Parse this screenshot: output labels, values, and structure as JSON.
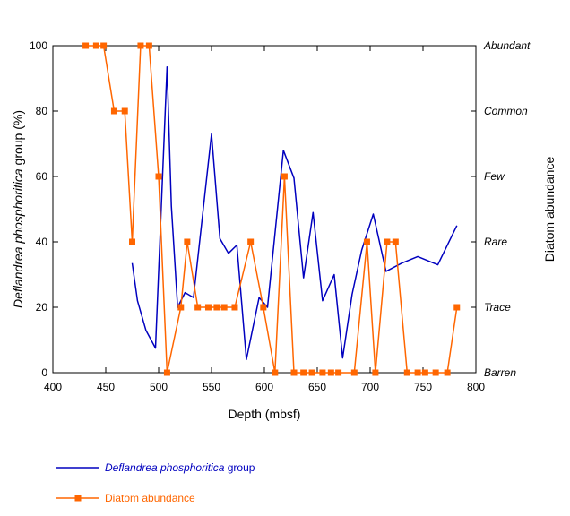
{
  "chart_data": {
    "type": "line",
    "xlabel": "Depth (mbsf)",
    "ylabel_italic": "Deflandrea phosphoritica",
    "ylabel_rest": " group (%)",
    "y2label": "Diatom abundance",
    "xlim": [
      400,
      800
    ],
    "ylim": [
      0,
      100
    ],
    "x_ticks": [
      400,
      450,
      500,
      550,
      600,
      650,
      700,
      750,
      800
    ],
    "y_ticks": [
      0,
      20,
      40,
      60,
      80,
      100
    ],
    "y2_categories": [
      "Barren",
      "Trace",
      "Rare",
      "Few",
      "Common",
      "Abundant"
    ],
    "grid": false,
    "legend_position": "bottom-left",
    "colors": {
      "deflandrea": "#0000bf",
      "diatom": "#ff6600"
    },
    "series": [
      {
        "name_italic": "Deflandrea phosphoritica",
        "name_rest": " group",
        "marker": "none",
        "x": [
          475,
          480,
          488,
          497,
          508,
          512,
          518,
          525,
          533,
          550,
          558,
          566,
          574,
          583,
          595,
          603,
          618,
          628,
          637,
          646,
          655,
          666,
          674,
          683,
          692,
          703,
          715,
          730,
          745,
          764,
          782
        ],
        "y": [
          33.5,
          22,
          13,
          7.5,
          93.5,
          51,
          20,
          24.5,
          23,
          73,
          41,
          36.5,
          39,
          4,
          23,
          20,
          68,
          59.5,
          29,
          49,
          22,
          30,
          4.5,
          24,
          37.5,
          48.5,
          31,
          33.5,
          35.5,
          33,
          45
        ]
      },
      {
        "name": "Diatom abundance",
        "marker": "square",
        "x": [
          431,
          441,
          448,
          458,
          468,
          475,
          483,
          491,
          500,
          508,
          521,
          527,
          537,
          547,
          555,
          562,
          572,
          587,
          599,
          610,
          619,
          628,
          637,
          645,
          655,
          663,
          670,
          685,
          697,
          705,
          716,
          724,
          735,
          745,
          752,
          762,
          773,
          782
        ],
        "y": [
          100,
          100,
          100,
          80,
          80,
          40,
          100,
          100,
          60,
          0,
          20,
          40,
          20,
          20,
          20,
          20,
          20,
          40,
          20,
          0,
          60,
          0,
          0,
          0,
          0,
          0,
          0,
          0,
          40,
          0,
          40,
          40,
          0,
          0,
          0,
          0,
          0,
          20
        ]
      }
    ]
  }
}
